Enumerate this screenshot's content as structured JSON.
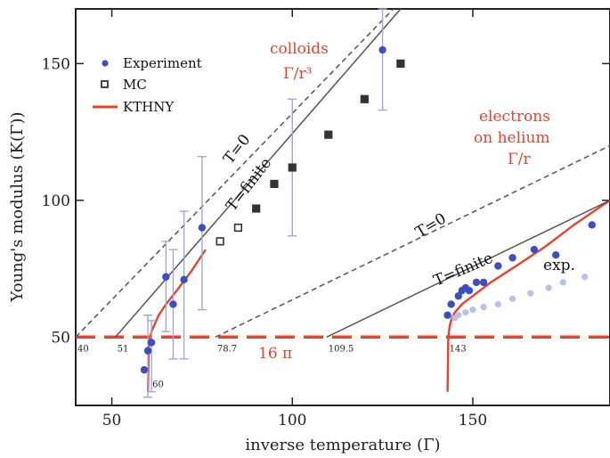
{
  "chart_data": {
    "type": "scatter",
    "xlabel": "inverse temperature (Γ)",
    "ylabel": "Young's modulus (K(Γ))",
    "xlim": [
      40,
      188
    ],
    "ylim": [
      25,
      170
    ],
    "xticks": [
      50,
      100,
      150
    ],
    "yticks": [
      50,
      100,
      150
    ],
    "legend_position": "top-left",
    "legend": [
      "Experiment",
      "MC",
      "KTHNY"
    ],
    "colors": {
      "experiment": "#3a4fc4",
      "experiment_faint": "#b7c0ee",
      "error_bar": "#9da8dd",
      "mc": "#333333",
      "ktn": "#e8432a",
      "threshold": "#e8432a",
      "line": "#555555"
    },
    "series": [
      {
        "name": "Experiment",
        "kind": "points",
        "x": [
          59,
          60,
          61,
          65,
          67,
          70,
          75,
          100,
          125
        ],
        "y": [
          38,
          45,
          48,
          72,
          62,
          71,
          90,
          112,
          155
        ]
      },
      {
        "name": "Experiment (electrons on helium)",
        "kind": "points",
        "x": [
          143,
          144,
          146,
          147,
          148,
          149,
          151,
          153,
          157,
          161,
          167,
          173,
          183
        ],
        "y": [
          58,
          62,
          65,
          67,
          68,
          67,
          70,
          70,
          76,
          79,
          82,
          80,
          91
        ]
      },
      {
        "name": "Experiment faint",
        "kind": "points_faint",
        "x": [
          145,
          146,
          148,
          150,
          153,
          157,
          161,
          166,
          171,
          175,
          181
        ],
        "y": [
          57,
          58,
          59,
          60,
          61,
          62,
          64,
          66,
          68,
          70,
          72
        ]
      },
      {
        "name": "MC",
        "kind": "squares",
        "x": [
          80,
          85,
          90,
          95,
          100,
          110,
          120,
          130
        ],
        "y": [
          85,
          90,
          97,
          106,
          112,
          124,
          137,
          150
        ]
      },
      {
        "name": "KTHNY colloids",
        "kind": "line",
        "x": [
          60,
          60.3,
          61,
          62,
          63,
          65,
          68,
          72,
          76
        ],
        "y": [
          30,
          48,
          52,
          55,
          58,
          62,
          67,
          74,
          82
        ]
      },
      {
        "name": "KTHNY electrons",
        "kind": "line",
        "x": [
          143,
          143.2,
          143.6,
          144.2,
          145,
          147,
          150,
          155,
          162,
          170,
          178,
          188
        ],
        "y": [
          30,
          50,
          54,
          57,
          59,
          62,
          65,
          70,
          76,
          83,
          91,
          100
        ]
      },
      {
        "name": "T=0 colloids",
        "kind": "dashed",
        "x": [
          40,
          128
        ],
        "y": [
          50,
          170
        ]
      },
      {
        "name": "T=finite colloids",
        "kind": "solid",
        "x": [
          51,
          130
        ],
        "y": [
          50,
          170
        ]
      },
      {
        "name": "T=0 electrons",
        "kind": "dashed",
        "x": [
          78.7,
          188
        ],
        "y": [
          50,
          120
        ]
      },
      {
        "name": "T=finite electrons",
        "kind": "solid",
        "x": [
          109.5,
          188
        ],
        "y": [
          50,
          100
        ]
      }
    ],
    "error_bars": [
      {
        "x": 60,
        "low": 28,
        "high": 58
      },
      {
        "x": 61,
        "low": 30,
        "high": 56
      },
      {
        "x": 65,
        "low": 52,
        "high": 85
      },
      {
        "x": 67,
        "low": 42,
        "high": 82
      },
      {
        "x": 70,
        "low": 42,
        "high": 96
      },
      {
        "x": 75,
        "low": 60,
        "high": 116
      },
      {
        "x": 100,
        "low": 87,
        "high": 137
      },
      {
        "x": 125,
        "low": 133,
        "high": 170
      }
    ],
    "threshold": {
      "y": 50,
      "label": "16 π"
    },
    "threshold_marks": [
      {
        "x": 40,
        "label": "40"
      },
      {
        "x": 51,
        "label": "51"
      },
      {
        "x": 78.7,
        "label": "78.7"
      },
      {
        "x": 109.5,
        "label": "109.5"
      },
      {
        "x": 143,
        "label": "143"
      },
      {
        "x": 60,
        "label": "60"
      }
    ],
    "annotations": [
      {
        "key": "colloids",
        "text": "colloids",
        "color": "red"
      },
      {
        "key": "colloids_scaling",
        "text": "Γ/r³",
        "color": "red"
      },
      {
        "key": "electrons",
        "text": "electrons",
        "color": "red"
      },
      {
        "key": "on_helium",
        "text": "on helium",
        "color": "red"
      },
      {
        "key": "electrons_scaling",
        "text": "Γ/r",
        "color": "red"
      },
      {
        "key": "t0_colloids",
        "text": "T=0",
        "color": "black"
      },
      {
        "key": "tfinite_colloids",
        "text": "T=finite",
        "color": "black"
      },
      {
        "key": "t0_electrons",
        "text": "T=0",
        "color": "black"
      },
      {
        "key": "tfinite_electrons",
        "text": "T=finite",
        "color": "black"
      },
      {
        "key": "exp",
        "text": "exp.",
        "color": "black"
      }
    ]
  }
}
